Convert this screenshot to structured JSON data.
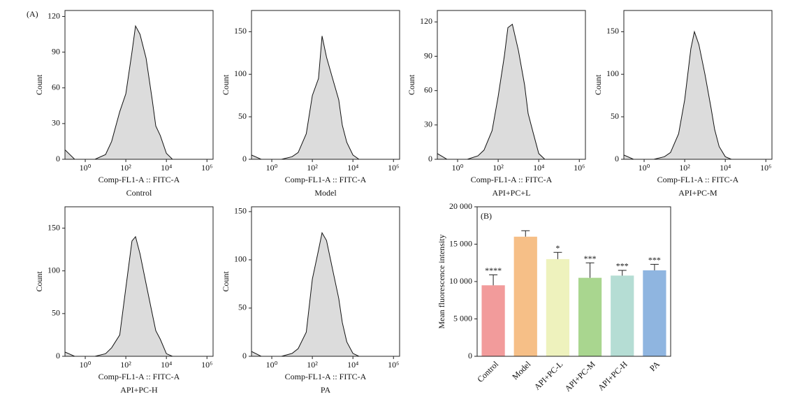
{
  "chart_data": [
    {
      "type": "area",
      "panel_label": "(A)",
      "caption": "Control",
      "xlabel": "Comp-FL1-A :: FITC-A",
      "ylabel": "Count",
      "xscale": "log",
      "color": "#dcdcdc",
      "x": [
        0.1,
        0.3,
        1,
        3,
        10,
        20,
        50,
        100,
        200,
        300,
        500,
        1000,
        2000,
        3000,
        5000,
        10000,
        20000,
        100000,
        2000000
      ],
      "y": [
        8,
        0,
        0,
        0,
        4,
        15,
        40,
        55,
        90,
        112,
        105,
        85,
        50,
        28,
        20,
        5,
        0,
        0,
        0
      ],
      "xlim": [
        0.1,
        2000000
      ],
      "ylim": [
        0,
        125
      ],
      "xticks": [
        {
          "value": 1,
          "label": "10⁰"
        },
        {
          "value": 100,
          "label": "10²"
        },
        {
          "value": 10000,
          "label": "10⁴"
        },
        {
          "value": 1000000,
          "label": "10⁶"
        }
      ],
      "yticks": [
        0,
        30,
        60,
        90,
        120
      ]
    },
    {
      "type": "area",
      "caption": "Model",
      "xlabel": "Comp-FL1-A :: FITC-A",
      "ylabel": "Count",
      "xscale": "log",
      "color": "#dcdcdc",
      "x": [
        0.1,
        0.3,
        1,
        3,
        10,
        20,
        50,
        100,
        200,
        300,
        500,
        1000,
        2000,
        3000,
        5000,
        10000,
        20000,
        100000,
        2000000
      ],
      "y": [
        5,
        0,
        0,
        0,
        3,
        8,
        30,
        75,
        95,
        145,
        120,
        95,
        70,
        40,
        20,
        5,
        0,
        0,
        0
      ],
      "xlim": [
        0.1,
        2000000
      ],
      "ylim": [
        0,
        175
      ],
      "xticks": [
        {
          "value": 1,
          "label": "10⁰"
        },
        {
          "value": 100,
          "label": "10²"
        },
        {
          "value": 10000,
          "label": "10⁴"
        },
        {
          "value": 1000000,
          "label": "10⁶"
        }
      ],
      "yticks": [
        0,
        50,
        100,
        150
      ]
    },
    {
      "type": "area",
      "caption": "API+PC+L",
      "xlabel": "Comp-FL1-A :: FITC-A",
      "ylabel": "Count",
      "xscale": "log",
      "color": "#dcdcdc",
      "x": [
        0.1,
        0.3,
        1,
        3,
        10,
        20,
        50,
        100,
        200,
        300,
        500,
        1000,
        2000,
        3000,
        5000,
        10000,
        20000,
        100000,
        2000000
      ],
      "y": [
        5,
        0,
        0,
        0,
        3,
        8,
        25,
        55,
        90,
        115,
        118,
        95,
        65,
        40,
        25,
        5,
        0,
        0,
        0
      ],
      "xlim": [
        0.1,
        2000000
      ],
      "ylim": [
        0,
        130
      ],
      "xticks": [
        {
          "value": 1,
          "label": "10⁰"
        },
        {
          "value": 100,
          "label": "10²"
        },
        {
          "value": 10000,
          "label": "10⁴"
        },
        {
          "value": 1000000,
          "label": "10⁶"
        }
      ],
      "yticks": [
        0,
        30,
        60,
        90,
        120
      ]
    },
    {
      "type": "area",
      "caption": "API+PC-M",
      "xlabel": "Comp-FL1-A :: FITC-A",
      "ylabel": "Count",
      "xscale": "log",
      "color": "#dcdcdc",
      "x": [
        0.1,
        0.3,
        1,
        3,
        10,
        20,
        50,
        100,
        200,
        300,
        500,
        1000,
        2000,
        3000,
        5000,
        10000,
        20000,
        100000,
        2000000
      ],
      "y": [
        5,
        0,
        0,
        0,
        3,
        8,
        30,
        70,
        130,
        150,
        135,
        100,
        60,
        35,
        15,
        3,
        0,
        0,
        0
      ],
      "xlim": [
        0.1,
        2000000
      ],
      "ylim": [
        0,
        175
      ],
      "xticks": [
        {
          "value": 1,
          "label": "10⁰"
        },
        {
          "value": 100,
          "label": "10²"
        },
        {
          "value": 10000,
          "label": "10⁴"
        },
        {
          "value": 1000000,
          "label": "10⁶"
        }
      ],
      "yticks": [
        0,
        50,
        100,
        150
      ]
    },
    {
      "type": "area",
      "caption": "API+PC-H",
      "xlabel": "Comp-FL1-A :: FITC-A",
      "ylabel": "Count",
      "xscale": "log",
      "color": "#dcdcdc",
      "x": [
        0.1,
        0.3,
        1,
        3,
        10,
        20,
        50,
        100,
        200,
        300,
        500,
        1000,
        2000,
        3000,
        5000,
        10000,
        20000,
        100000,
        2000000
      ],
      "y": [
        5,
        0,
        0,
        0,
        3,
        10,
        25,
        80,
        135,
        140,
        120,
        85,
        50,
        30,
        20,
        3,
        0,
        0,
        0
      ],
      "xlim": [
        0.1,
        2000000
      ],
      "ylim": [
        0,
        175
      ],
      "xticks": [
        {
          "value": 1,
          "label": "10⁰"
        },
        {
          "value": 100,
          "label": "10²"
        },
        {
          "value": 10000,
          "label": "10⁴"
        },
        {
          "value": 1000000,
          "label": "10⁶"
        }
      ],
      "yticks": [
        0,
        50,
        100,
        150
      ]
    },
    {
      "type": "area",
      "caption": "PA",
      "xlabel": "Comp-FL1-A :: FITC-A",
      "ylabel": "Count",
      "xscale": "log",
      "color": "#dcdcdc",
      "x": [
        0.1,
        0.3,
        1,
        3,
        10,
        20,
        50,
        100,
        200,
        300,
        500,
        1000,
        2000,
        3000,
        5000,
        10000,
        20000,
        100000,
        2000000
      ],
      "y": [
        5,
        0,
        0,
        0,
        3,
        8,
        25,
        80,
        110,
        128,
        120,
        90,
        60,
        35,
        15,
        3,
        0,
        0,
        0
      ],
      "xlim": [
        0.1,
        2000000
      ],
      "ylim": [
        0,
        155
      ],
      "xticks": [
        {
          "value": 1,
          "label": "10⁰"
        },
        {
          "value": 100,
          "label": "10²"
        },
        {
          "value": 10000,
          "label": "10⁴"
        },
        {
          "value": 1000000,
          "label": "10⁶"
        }
      ],
      "yticks": [
        0,
        50,
        100,
        150
      ]
    },
    {
      "type": "bar",
      "panel_label": "(B)",
      "ylabel": "Mean fluorescence intensity",
      "categories": [
        "Control",
        "Model",
        "API+PC-L",
        "API+PC-M",
        "API+PC-H",
        "PA"
      ],
      "values": [
        9500,
        16000,
        13000,
        10500,
        10800,
        11500
      ],
      "errors": [
        1400,
        800,
        900,
        2000,
        700,
        800
      ],
      "significance": [
        "****",
        null,
        "*",
        "***",
        "***",
        "***"
      ],
      "colors": [
        "#f29b9b",
        "#f6bf87",
        "#eef2bd",
        "#a9d68f",
        "#b5ddd4",
        "#8fb5e0"
      ],
      "ylim": [
        0,
        20000
      ],
      "yticks": [
        0,
        {
          "value": 5000,
          "label": "5 000"
        },
        {
          "value": 10000,
          "label": "10 000"
        },
        {
          "value": 15000,
          "label": "15 000"
        },
        {
          "value": 20000,
          "label": "20 000"
        }
      ]
    }
  ]
}
